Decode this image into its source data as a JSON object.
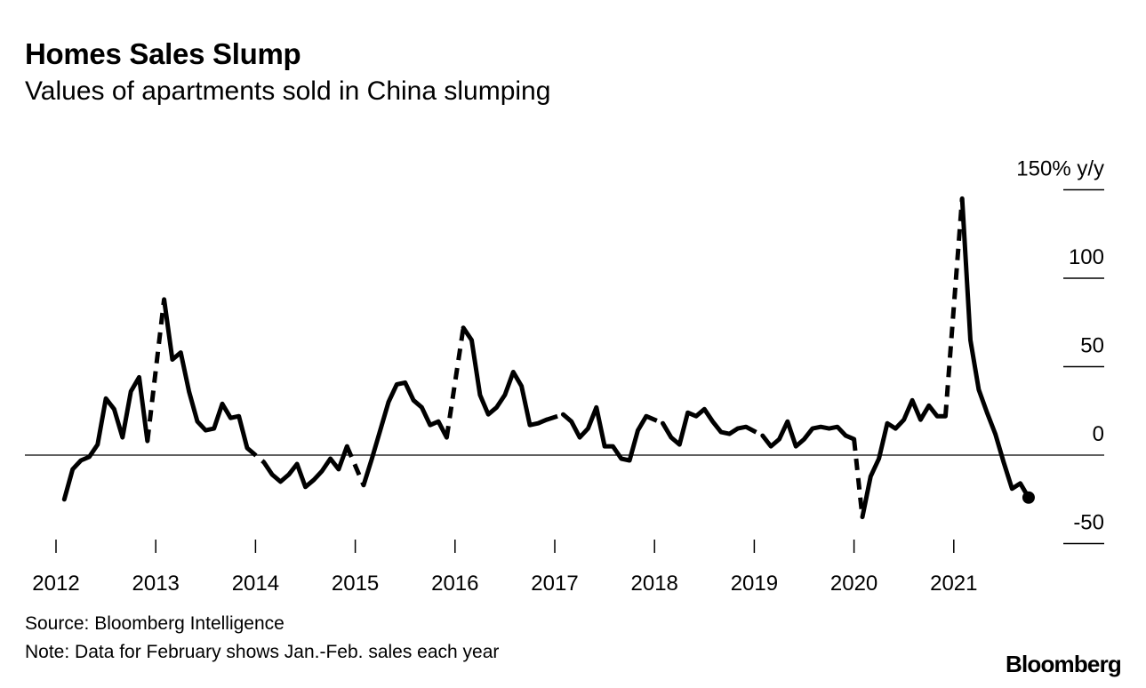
{
  "title": "Homes Sales Slump",
  "subtitle": "Values of apartments sold in China slumping",
  "source": "Source: Bloomberg Intelligence",
  "note": "Note: Data for February shows Jan.-Feb. sales each year",
  "brand": "Bloomberg",
  "colors": {
    "line": "#000000",
    "zero_line": "#000000",
    "background": "#ffffff"
  },
  "chart_data": {
    "type": "line",
    "title": "Homes Sales Slump",
    "subtitle": "Values of apartments sold in China slumping",
    "ylabel": "",
    "y_unit_label": "150% y/y",
    "ylim": [
      -60,
      150
    ],
    "yticks": [
      {
        "value": 150,
        "label": "150% y/y"
      },
      {
        "value": 100,
        "label": "100"
      },
      {
        "value": 50,
        "label": "50"
      },
      {
        "value": 0,
        "label": "0"
      },
      {
        "value": -50,
        "label": "-50"
      }
    ],
    "xticks": [
      "2012",
      "2013",
      "2014",
      "2015",
      "2016",
      "2017",
      "2018",
      "2019",
      "2020",
      "2021"
    ],
    "xlim": [
      "2012-01",
      "2021-11"
    ],
    "grid": false,
    "zero_line": true,
    "legend": "none",
    "line_style_note": "January-to-February segments drawn dashed",
    "end_marker": true,
    "series": [
      {
        "values": [
          [
            "2012-02",
            -25
          ],
          [
            "2012-03",
            -8
          ],
          [
            "2012-04",
            -3
          ],
          [
            "2012-05",
            -1
          ],
          [
            "2012-06",
            6
          ],
          [
            "2012-07",
            32
          ],
          [
            "2012-08",
            26
          ],
          [
            "2012-09",
            10
          ],
          [
            "2012-10",
            36
          ],
          [
            "2012-11",
            44
          ],
          [
            "2012-12",
            8
          ],
          [
            "2013-02",
            88
          ],
          [
            "2013-03",
            54
          ],
          [
            "2013-04",
            58
          ],
          [
            "2013-05",
            36
          ],
          [
            "2013-06",
            19
          ],
          [
            "2013-07",
            14
          ],
          [
            "2013-08",
            15
          ],
          [
            "2013-09",
            29
          ],
          [
            "2013-10",
            21
          ],
          [
            "2013-11",
            22
          ],
          [
            "2013-12",
            4
          ],
          [
            "2014-02",
            -4
          ],
          [
            "2014-03",
            -11
          ],
          [
            "2014-04",
            -15
          ],
          [
            "2014-05",
            -11
          ],
          [
            "2014-06",
            -5
          ],
          [
            "2014-07",
            -18
          ],
          [
            "2014-08",
            -14
          ],
          [
            "2014-09",
            -9
          ],
          [
            "2014-10",
            -2
          ],
          [
            "2014-11",
            -8
          ],
          [
            "2014-12",
            5
          ],
          [
            "2015-02",
            -17
          ],
          [
            "2015-03",
            -2
          ],
          [
            "2015-04",
            14
          ],
          [
            "2015-05",
            30
          ],
          [
            "2015-06",
            40
          ],
          [
            "2015-07",
            41
          ],
          [
            "2015-08",
            31
          ],
          [
            "2015-09",
            27
          ],
          [
            "2015-10",
            17
          ],
          [
            "2015-11",
            19
          ],
          [
            "2015-12",
            10
          ],
          [
            "2016-02",
            72
          ],
          [
            "2016-03",
            65
          ],
          [
            "2016-04",
            34
          ],
          [
            "2016-05",
            23
          ],
          [
            "2016-06",
            27
          ],
          [
            "2016-07",
            34
          ],
          [
            "2016-08",
            47
          ],
          [
            "2016-09",
            39
          ],
          [
            "2016-10",
            17
          ],
          [
            "2016-11",
            18
          ],
          [
            "2016-12",
            20
          ],
          [
            "2017-02",
            23
          ],
          [
            "2017-03",
            19
          ],
          [
            "2017-04",
            10
          ],
          [
            "2017-05",
            15
          ],
          [
            "2017-06",
            27
          ],
          [
            "2017-07",
            5
          ],
          [
            "2017-08",
            5
          ],
          [
            "2017-09",
            -2
          ],
          [
            "2017-10",
            -3
          ],
          [
            "2017-11",
            14
          ],
          [
            "2017-12",
            22
          ],
          [
            "2018-02",
            18
          ],
          [
            "2018-03",
            10
          ],
          [
            "2018-04",
            6
          ],
          [
            "2018-05",
            24
          ],
          [
            "2018-06",
            22
          ],
          [
            "2018-07",
            26
          ],
          [
            "2018-08",
            19
          ],
          [
            "2018-09",
            13
          ],
          [
            "2018-10",
            12
          ],
          [
            "2018-11",
            15
          ],
          [
            "2018-12",
            16
          ],
          [
            "2019-02",
            11
          ],
          [
            "2019-03",
            5
          ],
          [
            "2019-04",
            9
          ],
          [
            "2019-05",
            19
          ],
          [
            "2019-06",
            5
          ],
          [
            "2019-07",
            9
          ],
          [
            "2019-08",
            15
          ],
          [
            "2019-09",
            16
          ],
          [
            "2019-10",
            15
          ],
          [
            "2019-11",
            16
          ],
          [
            "2019-12",
            11
          ],
          [
            "2020-01",
            9
          ],
          [
            "2020-02",
            -35
          ],
          [
            "2020-03",
            -12
          ],
          [
            "2020-04",
            -2
          ],
          [
            "2020-05",
            18
          ],
          [
            "2020-06",
            15
          ],
          [
            "2020-07",
            20
          ],
          [
            "2020-08",
            31
          ],
          [
            "2020-09",
            20
          ],
          [
            "2020-10",
            28
          ],
          [
            "2020-11",
            22
          ],
          [
            "2020-12",
            22
          ],
          [
            "2021-02",
            145
          ],
          [
            "2021-03",
            65
          ],
          [
            "2021-04",
            37
          ],
          [
            "2021-05",
            24
          ],
          [
            "2021-06",
            12
          ],
          [
            "2021-07",
            -4
          ],
          [
            "2021-08",
            -19
          ],
          [
            "2021-09",
            -16
          ],
          [
            "2021-10",
            -24
          ]
        ]
      }
    ]
  }
}
